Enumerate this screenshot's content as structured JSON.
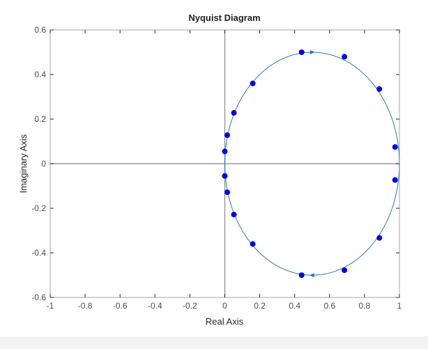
{
  "chart_data": {
    "type": "scatter",
    "title": "Nyquist Diagram",
    "xlabel": "Real Axis",
    "ylabel": "Imaginary Axis",
    "xlim": [
      -1,
      1
    ],
    "ylim": [
      -0.6,
      0.6
    ],
    "xticks": [
      -1,
      -0.8,
      -0.6,
      -0.4,
      -0.2,
      0,
      0.2,
      0.4,
      0.6,
      0.8,
      1
    ],
    "xtick_labels": [
      "-1",
      "-0.8",
      "-0.6",
      "-0.4",
      "-0.2",
      "0",
      "0.2",
      "0.4",
      "0.6",
      "0.8",
      "1"
    ],
    "yticks": [
      -0.6,
      -0.4,
      -0.2,
      0,
      0.2,
      0.4,
      0.6
    ],
    "ytick_labels": [
      "-0.6",
      "-0.4",
      "-0.2",
      "0",
      "0.2",
      "0.4",
      "0.6"
    ],
    "grid": false,
    "curve": {
      "type": "circle",
      "center": [
        0.5,
        0
      ],
      "radius": 0.5,
      "color": "#2a7ab0",
      "arrows_at": [
        [
          0.5,
          0.5
        ],
        [
          0.5,
          -0.5
        ]
      ]
    },
    "points": {
      "color": "#0000e0",
      "x": [
        0.44,
        0.685,
        0.885,
        0.975,
        0.975,
        0.885,
        0.685,
        0.44,
        0.16,
        0.052,
        0.014,
        0.0,
        0.0,
        0.014,
        0.052,
        0.16
      ],
      "y": [
        0.5,
        0.48,
        0.335,
        0.075,
        -0.073,
        -0.333,
        -0.478,
        -0.5,
        0.36,
        0.228,
        0.128,
        0.055,
        -0.055,
        -0.128,
        -0.228,
        -0.36
      ]
    },
    "axis_color": "#a6a6a6",
    "zero_line_color": "#999999"
  }
}
